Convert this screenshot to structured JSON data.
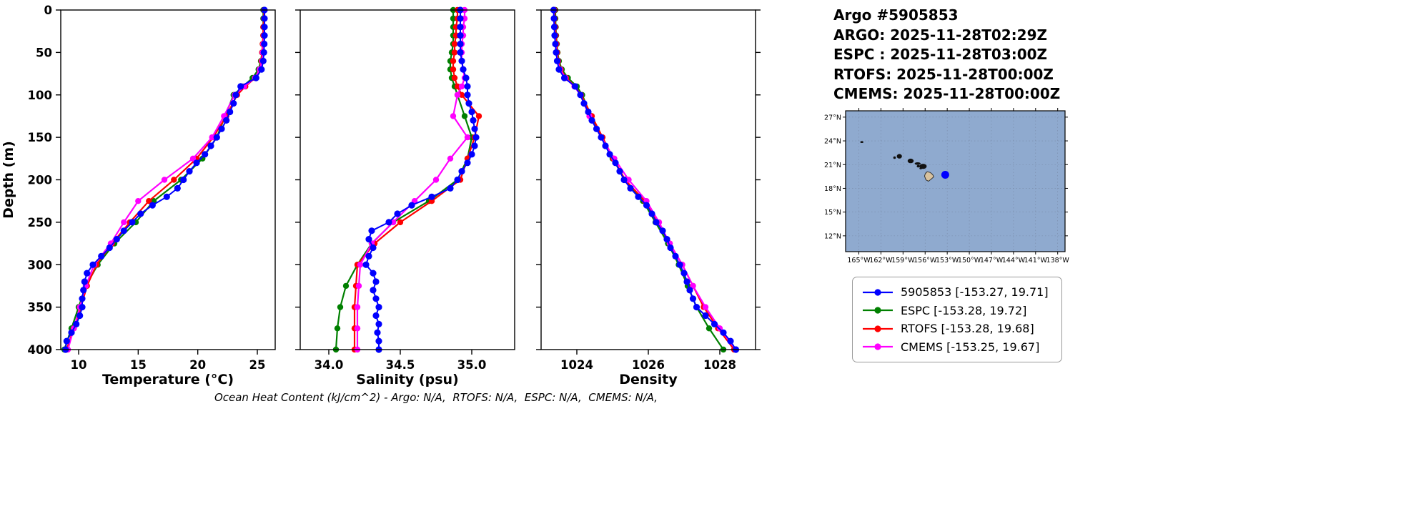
{
  "header": {
    "lines": [
      "Argo #5905853",
      "ARGO: 2025-11-28T02:29Z",
      "ESPC : 2025-11-28T03:00Z",
      "RTOFS: 2025-11-28T00:00Z",
      "CMEMS: 2025-11-28T00:00Z"
    ]
  },
  "footer": {
    "note": "Ocean Heat Content (kJ/cm^2) - Argo: N/A,  RTOFS: N/A,  ESPC: N/A,  CMEMS: N/A,"
  },
  "legend": {
    "entries": [
      {
        "label": "5905853 [-153.27, 19.71]",
        "color": "#0000ff"
      },
      {
        "label": "ESPC [-153.28, 19.72]",
        "color": "#008000"
      },
      {
        "label": "RTOFS [-153.28, 19.68]",
        "color": "#ff0000"
      },
      {
        "label": "CMEMS [-153.25, 19.67]",
        "color": "#ff00ff"
      }
    ]
  },
  "map": {
    "ocean_color": "#8faacf",
    "grid_color": "#73829e",
    "lon_range": [
      -166.8,
      -137.0
    ],
    "lat_range": [
      10.0,
      27.8
    ],
    "lon_ticks": [
      -165,
      -162,
      -159,
      -156,
      -153,
      -150,
      -147,
      -144,
      -141,
      -138
    ],
    "lon_tick_labels": [
      "165°W",
      "162°W",
      "159°W",
      "156°W",
      "153°W",
      "150°W",
      "147°W",
      "144°W",
      "141°W",
      "138°W"
    ],
    "lat_ticks": [
      12,
      15,
      18,
      21,
      24,
      27
    ],
    "lat_tick_labels": [
      "12°N",
      "15°N",
      "18°N",
      "21°N",
      "24°N",
      "27°N"
    ],
    "float_marker": {
      "lon": -153.27,
      "lat": 19.71,
      "color": "#0000ff",
      "radius": 5.5
    },
    "islands": [
      {
        "name": "northwest-islet",
        "lon": -164.6,
        "lat": 23.85,
        "rx": 2.2,
        "ry": 1.3
      },
      {
        "name": "niihau",
        "lon": -160.15,
        "lat": 21.88,
        "rx": 1.8,
        "ry": 1.8
      },
      {
        "name": "kauai",
        "lon": -159.5,
        "lat": 22.05,
        "rx": 3.6,
        "ry": 3.2
      },
      {
        "name": "oahu",
        "lon": -157.97,
        "lat": 21.47,
        "rx": 4.2,
        "ry": 3.2
      },
      {
        "name": "molokai",
        "lon": -157.02,
        "lat": 21.13,
        "rx": 4.2,
        "ry": 1.8
      },
      {
        "name": "lanai",
        "lon": -156.93,
        "lat": 20.8,
        "rx": 2.2,
        "ry": 1.8
      },
      {
        "name": "kahoolawe",
        "lon": -156.6,
        "lat": 20.53,
        "rx": 1.8,
        "ry": 1.4
      },
      {
        "name": "maui",
        "lon": -156.28,
        "lat": 20.78,
        "rx": 5.0,
        "ry": 3.6
      }
    ],
    "big_island": {
      "fill": "#d8c29e",
      "stroke": "#333333",
      "points": [
        [
          -155.88,
          19.06
        ],
        [
          -155.55,
          18.9
        ],
        [
          -155.2,
          19.14
        ],
        [
          -154.82,
          19.46
        ],
        [
          -154.98,
          19.74
        ],
        [
          -155.3,
          20.0
        ],
        [
          -155.72,
          20.1
        ],
        [
          -155.98,
          19.85
        ],
        [
          -156.08,
          19.55
        ]
      ]
    }
  },
  "chart_data": {
    "type": "line",
    "orientation": "vertical-profile",
    "ylabel": "Depth (m)",
    "ylim": [
      0,
      400
    ],
    "yticks": [
      0,
      50,
      100,
      150,
      200,
      250,
      300,
      350,
      400
    ],
    "panels": [
      {
        "key": "temperature",
        "xlabel": "Temperature (°C)",
        "xlim": [
          8.5,
          26.5
        ],
        "xticks": [
          10,
          15,
          20,
          25
        ],
        "xtick_labels": [
          "10",
          "15",
          "20",
          "25"
        ]
      },
      {
        "key": "salinity",
        "xlabel": "Salinity (psu)",
        "xlim": [
          33.8,
          35.3
        ],
        "xticks": [
          34.0,
          34.5,
          35.0
        ],
        "xtick_labels": [
          "34.0",
          "34.5",
          "35.0"
        ]
      },
      {
        "key": "density",
        "xlabel": "Density",
        "xlim": [
          1023,
          1029
        ],
        "xticks": [
          1024,
          1026,
          1028
        ],
        "xtick_labels": [
          "1024",
          "1026",
          "1028"
        ]
      }
    ],
    "series": [
      {
        "name": "5905853",
        "color": "#0000ff",
        "marker_radius": 4.6,
        "line_width": 2,
        "depths": [
          0,
          10,
          20,
          30,
          40,
          50,
          60,
          70,
          80,
          90,
          100,
          110,
          120,
          130,
          140,
          150,
          160,
          170,
          180,
          190,
          200,
          210,
          220,
          230,
          240,
          250,
          260,
          270,
          280,
          290,
          300,
          310,
          320,
          330,
          340,
          350,
          360,
          370,
          380,
          390,
          400
        ],
        "temperature": [
          25.6,
          25.6,
          25.6,
          25.6,
          25.58,
          25.55,
          25.5,
          25.35,
          24.9,
          23.6,
          23.2,
          23.0,
          22.7,
          22.4,
          22.0,
          21.6,
          21.1,
          20.6,
          19.9,
          19.3,
          18.8,
          18.3,
          17.4,
          16.2,
          15.2,
          14.5,
          13.8,
          13.2,
          12.6,
          11.9,
          11.2,
          10.7,
          10.5,
          10.4,
          10.3,
          10.3,
          10.1,
          9.8,
          9.4,
          9.0,
          8.9
        ],
        "salinity": [
          34.92,
          34.92,
          34.92,
          34.92,
          34.92,
          34.92,
          34.93,
          34.94,
          34.96,
          34.97,
          34.97,
          34.98,
          35.0,
          35.01,
          35.02,
          35.03,
          35.02,
          35.0,
          34.97,
          34.93,
          34.9,
          34.85,
          34.72,
          34.58,
          34.48,
          34.42,
          34.3,
          34.28,
          34.31,
          34.28,
          34.26,
          34.31,
          34.33,
          34.31,
          34.33,
          34.35,
          34.33,
          34.35,
          34.34,
          34.35,
          34.35
        ],
        "density": [
          1023.35,
          1023.36,
          1023.37,
          1023.38,
          1023.4,
          1023.42,
          1023.45,
          1023.5,
          1023.65,
          1023.95,
          1024.1,
          1024.2,
          1024.32,
          1024.42,
          1024.55,
          1024.68,
          1024.8,
          1024.92,
          1025.08,
          1025.2,
          1025.32,
          1025.5,
          1025.72,
          1025.95,
          1026.1,
          1026.22,
          1026.4,
          1026.52,
          1026.62,
          1026.76,
          1026.88,
          1027.0,
          1027.08,
          1027.16,
          1027.25,
          1027.35,
          1027.6,
          1027.85,
          1028.1,
          1028.3,
          1028.45
        ]
      },
      {
        "name": "ESPC",
        "color": "#008000",
        "marker_radius": 4.2,
        "line_width": 2.2,
        "depths": [
          0,
          10,
          20,
          30,
          40,
          50,
          60,
          70,
          80,
          90,
          100,
          125,
          150,
          175,
          200,
          225,
          250,
          275,
          300,
          325,
          350,
          375,
          400
        ],
        "temperature": [
          25.5,
          25.5,
          25.5,
          25.5,
          25.45,
          25.4,
          25.3,
          25.1,
          24.6,
          23.8,
          23.0,
          22.3,
          21.6,
          20.4,
          18.6,
          16.3,
          14.8,
          13.0,
          11.6,
          10.6,
          10.0,
          9.4,
          8.8
        ],
        "salinity": [
          34.87,
          34.87,
          34.87,
          34.87,
          34.87,
          34.86,
          34.85,
          34.85,
          34.86,
          34.88,
          34.9,
          34.95,
          35.0,
          34.97,
          34.9,
          34.7,
          34.45,
          34.3,
          34.2,
          34.12,
          34.08,
          34.06,
          34.05
        ],
        "density": [
          1023.4,
          1023.4,
          1023.41,
          1023.42,
          1023.44,
          1023.46,
          1023.5,
          1023.58,
          1023.75,
          1024.0,
          1024.15,
          1024.4,
          1024.7,
          1025.0,
          1025.35,
          1025.85,
          1026.2,
          1026.55,
          1026.85,
          1027.1,
          1027.35,
          1027.7,
          1028.1
        ]
      },
      {
        "name": "RTOFS",
        "color": "#ff0000",
        "marker_radius": 4.2,
        "line_width": 2.2,
        "depths": [
          0,
          10,
          20,
          30,
          40,
          50,
          60,
          70,
          80,
          90,
          100,
          125,
          150,
          175,
          200,
          225,
          250,
          275,
          300,
          325,
          350,
          375,
          400
        ],
        "temperature": [
          25.55,
          25.55,
          25.5,
          25.5,
          25.45,
          25.4,
          25.35,
          25.2,
          24.8,
          24.0,
          23.3,
          22.4,
          21.3,
          19.9,
          18.0,
          15.9,
          14.3,
          12.8,
          11.5,
          10.7,
          10.2,
          9.6,
          9.0
        ],
        "salinity": [
          34.9,
          34.9,
          34.89,
          34.89,
          34.88,
          34.88,
          34.87,
          34.87,
          34.88,
          34.9,
          34.93,
          35.05,
          35.02,
          34.97,
          34.92,
          34.72,
          34.5,
          34.32,
          34.2,
          34.19,
          34.18,
          34.18,
          34.18
        ],
        "density": [
          1023.38,
          1023.38,
          1023.4,
          1023.41,
          1023.43,
          1023.45,
          1023.48,
          1023.55,
          1023.7,
          1023.95,
          1024.12,
          1024.42,
          1024.72,
          1025.02,
          1025.35,
          1025.9,
          1026.25,
          1026.6,
          1026.95,
          1027.25,
          1027.55,
          1027.95,
          1028.4
        ]
      },
      {
        "name": "CMEMS",
        "color": "#ff00ff",
        "marker_radius": 4.2,
        "line_width": 2.2,
        "depths": [
          0,
          10,
          20,
          30,
          40,
          50,
          60,
          70,
          80,
          90,
          100,
          125,
          150,
          175,
          200,
          225,
          250,
          275,
          300,
          325,
          350,
          375,
          400
        ],
        "temperature": [
          25.6,
          25.6,
          25.6,
          25.55,
          25.5,
          25.45,
          25.4,
          25.2,
          24.8,
          23.9,
          23.1,
          22.2,
          21.2,
          19.6,
          17.2,
          15.0,
          13.8,
          12.7,
          11.3,
          10.6,
          10.1,
          9.6,
          9.1
        ],
        "salinity": [
          34.95,
          34.95,
          34.94,
          34.94,
          34.93,
          34.93,
          34.93,
          34.94,
          34.95,
          34.93,
          34.9,
          34.87,
          34.97,
          34.85,
          34.75,
          34.6,
          34.45,
          34.3,
          34.22,
          34.21,
          34.2,
          34.2,
          34.2
        ],
        "density": [
          1023.36,
          1023.36,
          1023.37,
          1023.39,
          1023.41,
          1023.43,
          1023.46,
          1023.53,
          1023.68,
          1023.93,
          1024.1,
          1024.35,
          1024.68,
          1025.05,
          1025.45,
          1025.95,
          1026.3,
          1026.6,
          1026.95,
          1027.25,
          1027.6,
          1028.0,
          1028.45
        ]
      }
    ]
  }
}
